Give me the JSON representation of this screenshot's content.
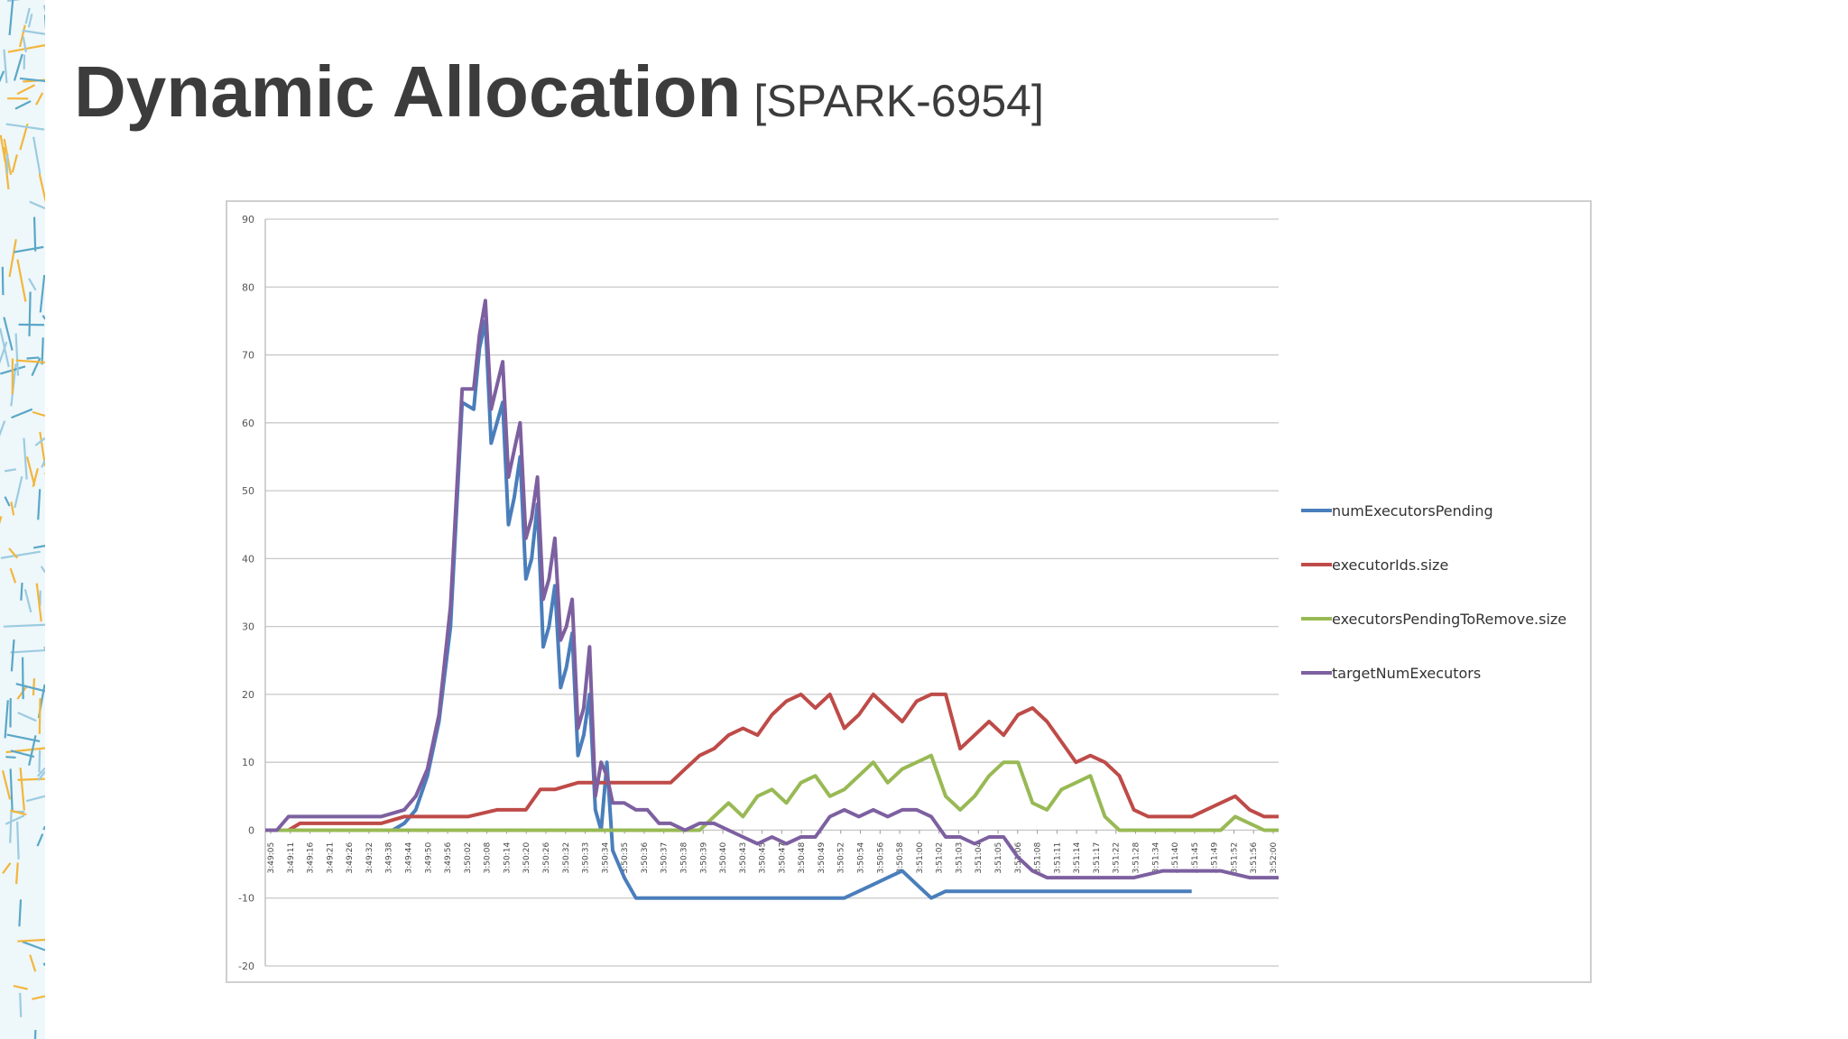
{
  "slide": {
    "title": "Dynamic Allocation",
    "subtitle": "[SPARK-6954]"
  },
  "chart_data": {
    "type": "line",
    "ylim": [
      -20,
      90
    ],
    "yticks": [
      -20,
      -10,
      0,
      10,
      20,
      30,
      40,
      50,
      60,
      70,
      80,
      90
    ],
    "grid": true,
    "legend_position": "right",
    "x_tick_labels": [
      "3:49:05",
      "3:49:11",
      "3:49:16",
      "3:49:21",
      "3:49:26",
      "3:49:32",
      "3:49:38",
      "3:49:44",
      "3:49:50",
      "3:49:56",
      "3:50:02",
      "3:50:08",
      "3:50:14",
      "3:50:20",
      "3:50:26",
      "3:50:32",
      "3:50:33",
      "3:50:34",
      "3:50:35",
      "3:50:36",
      "3:50:37",
      "3:50:38",
      "3:50:39",
      "3:50:40",
      "3:50:43",
      "3:50:45",
      "3:50:47",
      "3:50:48",
      "3:50:49",
      "3:50:52",
      "3:50:54",
      "3:50:56",
      "3:50:58",
      "3:51:00",
      "3:51:02",
      "3:51:03",
      "3:51:04",
      "3:51:05",
      "3:51:06",
      "3:51:08",
      "3:51:11",
      "3:51:14",
      "3:51:17",
      "3:51:22",
      "3:51:28",
      "3:51:34",
      "3:51:40",
      "3:51:45",
      "3:51:49",
      "3:51:52",
      "3:51:56",
      "3:52:00"
    ],
    "series": [
      {
        "name": "numExecutorsPending",
        "color": "#4a7ebb",
        "points": [
          [
            0,
            0
          ],
          [
            4,
            0
          ],
          [
            8,
            0
          ],
          [
            12,
            0
          ],
          [
            16,
            0
          ],
          [
            20,
            0
          ],
          [
            24,
            0
          ],
          [
            28,
            0
          ],
          [
            32,
            0
          ],
          [
            36,
            0
          ],
          [
            40,
            0
          ],
          [
            44,
            0
          ],
          [
            48,
            1
          ],
          [
            52,
            3
          ],
          [
            56,
            8
          ],
          [
            60,
            16
          ],
          [
            64,
            30
          ],
          [
            68,
            63
          ],
          [
            72,
            62
          ],
          [
            74,
            71
          ],
          [
            76,
            75
          ],
          [
            78,
            57
          ],
          [
            82,
            63
          ],
          [
            84,
            45
          ],
          [
            86,
            49
          ],
          [
            88,
            55
          ],
          [
            90,
            37
          ],
          [
            92,
            40
          ],
          [
            94,
            48
          ],
          [
            96,
            27
          ],
          [
            98,
            30
          ],
          [
            100,
            36
          ],
          [
            102,
            21
          ],
          [
            104,
            24
          ],
          [
            106,
            29
          ],
          [
            108,
            11
          ],
          [
            110,
            14
          ],
          [
            112,
            20
          ],
          [
            114,
            3
          ],
          [
            116,
            0
          ],
          [
            118,
            10
          ],
          [
            120,
            -3
          ],
          [
            124,
            -7
          ],
          [
            128,
            -10
          ],
          [
            140,
            -10
          ],
          [
            160,
            -10
          ],
          [
            180,
            -10
          ],
          [
            200,
            -10
          ],
          [
            210,
            -8
          ],
          [
            215,
            -7
          ],
          [
            220,
            -6
          ],
          [
            225,
            -8
          ],
          [
            230,
            -10
          ],
          [
            235,
            -9
          ],
          [
            240,
            -9
          ],
          [
            260,
            -9
          ],
          [
            280,
            -9
          ],
          [
            300,
            -9
          ],
          [
            320,
            -9
          ]
        ]
      },
      {
        "name": "executorIds.size",
        "color": "#be4b48",
        "points": [
          [
            0,
            0
          ],
          [
            8,
            0
          ],
          [
            12,
            1
          ],
          [
            20,
            1
          ],
          [
            30,
            1
          ],
          [
            40,
            1
          ],
          [
            48,
            2
          ],
          [
            60,
            2
          ],
          [
            70,
            2
          ],
          [
            80,
            3
          ],
          [
            90,
            3
          ],
          [
            95,
            6
          ],
          [
            100,
            6
          ],
          [
            108,
            7
          ],
          [
            120,
            7
          ],
          [
            130,
            7
          ],
          [
            140,
            7
          ],
          [
            145,
            9
          ],
          [
            150,
            11
          ],
          [
            155,
            12
          ],
          [
            160,
            14
          ],
          [
            165,
            15
          ],
          [
            170,
            14
          ],
          [
            175,
            17
          ],
          [
            180,
            19
          ],
          [
            185,
            20
          ],
          [
            190,
            18
          ],
          [
            195,
            20
          ],
          [
            200,
            15
          ],
          [
            205,
            17
          ],
          [
            210,
            20
          ],
          [
            215,
            18
          ],
          [
            220,
            16
          ],
          [
            225,
            19
          ],
          [
            230,
            20
          ],
          [
            235,
            20
          ],
          [
            240,
            12
          ],
          [
            245,
            14
          ],
          [
            250,
            16
          ],
          [
            255,
            14
          ],
          [
            260,
            17
          ],
          [
            265,
            18
          ],
          [
            270,
            16
          ],
          [
            275,
            13
          ],
          [
            280,
            10
          ],
          [
            285,
            11
          ],
          [
            290,
            10
          ],
          [
            295,
            8
          ],
          [
            300,
            3
          ],
          [
            305,
            2
          ],
          [
            310,
            2
          ],
          [
            320,
            2
          ],
          [
            330,
            4
          ],
          [
            335,
            5
          ],
          [
            340,
            3
          ],
          [
            345,
            2
          ],
          [
            350,
            2
          ]
        ]
      },
      {
        "name": "executorsPendingToRemove.size",
        "color": "#98b954",
        "points": [
          [
            0,
            0
          ],
          [
            40,
            0
          ],
          [
            80,
            0
          ],
          [
            120,
            0
          ],
          [
            150,
            0
          ],
          [
            155,
            2
          ],
          [
            160,
            4
          ],
          [
            165,
            2
          ],
          [
            170,
            5
          ],
          [
            175,
            6
          ],
          [
            180,
            4
          ],
          [
            185,
            7
          ],
          [
            190,
            8
          ],
          [
            195,
            5
          ],
          [
            200,
            6
          ],
          [
            205,
            8
          ],
          [
            210,
            10
          ],
          [
            215,
            7
          ],
          [
            220,
            9
          ],
          [
            225,
            10
          ],
          [
            230,
            11
          ],
          [
            235,
            5
          ],
          [
            240,
            3
          ],
          [
            245,
            5
          ],
          [
            250,
            8
          ],
          [
            255,
            10
          ],
          [
            260,
            10
          ],
          [
            265,
            4
          ],
          [
            270,
            3
          ],
          [
            275,
            6
          ],
          [
            280,
            7
          ],
          [
            285,
            8
          ],
          [
            290,
            2
          ],
          [
            295,
            0
          ],
          [
            300,
            0
          ],
          [
            320,
            0
          ],
          [
            330,
            0
          ],
          [
            335,
            2
          ],
          [
            340,
            1
          ],
          [
            345,
            0
          ],
          [
            350,
            0
          ]
        ]
      },
      {
        "name": "targetNumExecutors",
        "color": "#7d60a0",
        "points": [
          [
            0,
            0
          ],
          [
            4,
            0
          ],
          [
            8,
            2
          ],
          [
            12,
            2
          ],
          [
            20,
            2
          ],
          [
            30,
            2
          ],
          [
            40,
            2
          ],
          [
            48,
            3
          ],
          [
            52,
            5
          ],
          [
            56,
            9
          ],
          [
            60,
            17
          ],
          [
            64,
            33
          ],
          [
            68,
            65
          ],
          [
            72,
            65
          ],
          [
            74,
            73
          ],
          [
            76,
            78
          ],
          [
            78,
            62
          ],
          [
            82,
            69
          ],
          [
            84,
            52
          ],
          [
            86,
            56
          ],
          [
            88,
            60
          ],
          [
            90,
            43
          ],
          [
            92,
            46
          ],
          [
            94,
            52
          ],
          [
            96,
            34
          ],
          [
            98,
            37
          ],
          [
            100,
            43
          ],
          [
            102,
            28
          ],
          [
            104,
            30
          ],
          [
            106,
            34
          ],
          [
            108,
            15
          ],
          [
            110,
            18
          ],
          [
            112,
            27
          ],
          [
            114,
            5
          ],
          [
            116,
            10
          ],
          [
            118,
            8
          ],
          [
            120,
            4
          ],
          [
            124,
            4
          ],
          [
            128,
            3
          ],
          [
            132,
            3
          ],
          [
            136,
            1
          ],
          [
            140,
            1
          ],
          [
            145,
            0
          ],
          [
            150,
            1
          ],
          [
            155,
            1
          ],
          [
            160,
            0
          ],
          [
            165,
            -1
          ],
          [
            170,
            -2
          ],
          [
            175,
            -1
          ],
          [
            180,
            -2
          ],
          [
            185,
            -1
          ],
          [
            190,
            -1
          ],
          [
            195,
            2
          ],
          [
            200,
            3
          ],
          [
            205,
            2
          ],
          [
            210,
            3
          ],
          [
            215,
            2
          ],
          [
            220,
            3
          ],
          [
            225,
            3
          ],
          [
            230,
            2
          ],
          [
            235,
            -1
          ],
          [
            240,
            -1
          ],
          [
            245,
            -2
          ],
          [
            250,
            -1
          ],
          [
            255,
            -1
          ],
          [
            260,
            -4
          ],
          [
            265,
            -6
          ],
          [
            270,
            -7
          ],
          [
            280,
            -7
          ],
          [
            290,
            -7
          ],
          [
            300,
            -7
          ],
          [
            310,
            -6
          ],
          [
            315,
            -6
          ],
          [
            320,
            -6
          ],
          [
            330,
            -6
          ],
          [
            340,
            -7
          ],
          [
            350,
            -7
          ]
        ]
      }
    ]
  },
  "decor": {
    "side_pattern_colors": [
      "#5aa7c7",
      "#f2b63c",
      "#9ccbe0"
    ]
  }
}
